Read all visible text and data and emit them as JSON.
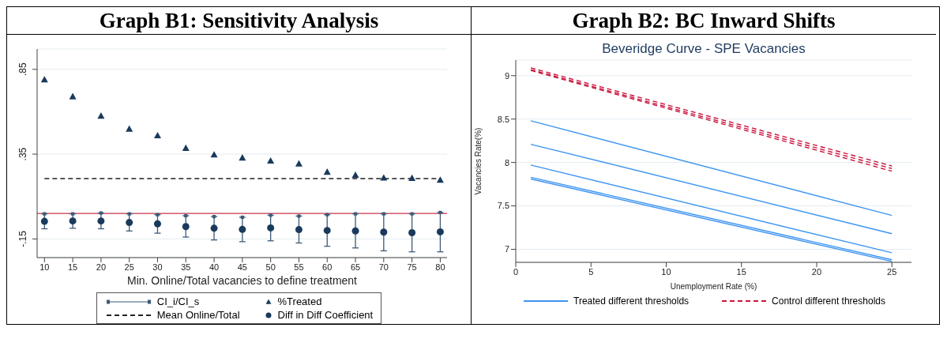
{
  "chart_data": [
    {
      "type": "scatter",
      "title": "Graph B1: Sensitivity Analysis",
      "xlabel": "Min. Online/Total vacancies to define treatment",
      "x": [
        10,
        15,
        20,
        25,
        30,
        35,
        40,
        45,
        50,
        55,
        60,
        65,
        70,
        75,
        80
      ],
      "xlim": [
        8.7,
        81.2
      ],
      "xticks": [
        10,
        15,
        20,
        25,
        30,
        35,
        40,
        45,
        50,
        55,
        60,
        65,
        70,
        75,
        80
      ],
      "ylim": [
        -0.26,
        0.97
      ],
      "yticks": [
        {
          "value": 0.85,
          "label": ".85"
        },
        {
          "value": 0.35,
          "label": ".35"
        },
        {
          "value": -0.15,
          "label": "-.15"
        }
      ],
      "grid": "y",
      "legend": "bottom",
      "ref_lines": [
        {
          "axis": "y",
          "value": 0,
          "color": "#c8324b"
        }
      ],
      "series": [
        {
          "name": "CI_i/CI_s",
          "color": "#3d5a78",
          "marker": "square",
          "values": [
            -0.002,
            -0.002,
            0.003,
            -0.002,
            -0.007,
            -0.013,
            -0.018,
            -0.022,
            -0.01,
            -0.015,
            -0.007,
            -0.002,
            -0.002,
            -0.002,
            0.006
          ],
          "errors": [
            [
              -0.09,
              -0.002
            ],
            [
              -0.087,
              -0.002
            ],
            [
              -0.09,
              0.003
            ],
            [
              -0.103,
              -0.002
            ],
            [
              -0.116,
              -0.007
            ],
            [
              -0.139,
              -0.013
            ],
            [
              -0.156,
              -0.018
            ],
            [
              -0.166,
              -0.022
            ],
            [
              -0.161,
              -0.01
            ],
            [
              -0.174,
              -0.015
            ],
            [
              -0.193,
              -0.007
            ],
            [
              -0.203,
              -0.002
            ],
            [
              -0.22,
              -0.002
            ],
            [
              -0.226,
              -0.002
            ],
            [
              -0.226,
              0.006
            ]
          ]
        },
        {
          "name": "%Treated",
          "color": "#1a3a5c",
          "marker": "triangle",
          "values": [
            0.79,
            0.69,
            0.576,
            0.499,
            0.46,
            0.386,
            0.347,
            0.329,
            0.311,
            0.294,
            0.245,
            0.227,
            0.211,
            0.209,
            0.198
          ]
        },
        {
          "name": "Mean Online/Total",
          "type": "line",
          "color": "#222222",
          "marker": "none",
          "line_style": "dashed",
          "values": [
            0.206,
            0.206,
            0.206,
            0.206,
            0.206,
            0.206,
            0.206,
            0.206,
            0.206,
            0.206,
            0.206,
            0.206,
            0.206,
            0.206,
            0.206
          ]
        },
        {
          "name": "Diff in Diff Coefficient",
          "color": "#1a3a5c",
          "marker": "circle",
          "values": [
            -0.046,
            -0.044,
            -0.044,
            -0.053,
            -0.061,
            -0.077,
            -0.087,
            -0.094,
            -0.085,
            -0.095,
            -0.1,
            -0.103,
            -0.11,
            -0.113,
            -0.108
          ]
        }
      ]
    },
    {
      "type": "line",
      "title": "Graph B2: BC Inward Shifts",
      "subtitle": "Beveridge Curve - SPE Vacancies",
      "xlabel": "Unemployment Rate (%)",
      "ylabel": "Vacancies Rate(%)",
      "x": [
        1,
        25
      ],
      "xlim": [
        0,
        26.3
      ],
      "xticks": [
        0,
        5,
        10,
        15,
        20,
        25
      ],
      "ylim": [
        6.85,
        9.18
      ],
      "yticks": [
        7,
        7.5,
        8,
        8.5,
        9
      ],
      "grid": "y",
      "legend": "bottom",
      "marker": "none",
      "series": [
        {
          "name": "Treated different thresholds",
          "color": "#3d94f0",
          "line_style": "solid",
          "values": [
            8.48,
            7.39
          ]
        },
        {
          "color": "#3d94f0",
          "line_style": "solid",
          "values": [
            8.21,
            7.18
          ]
        },
        {
          "color": "#3d94f0",
          "line_style": "solid",
          "values": [
            7.97,
            6.96
          ]
        },
        {
          "color": "#3d94f0",
          "line_style": "solid",
          "values": [
            7.83,
            6.88
          ]
        },
        {
          "color": "#3d94f0",
          "line_style": "solid",
          "values": [
            7.81,
            6.86
          ]
        },
        {
          "name": "Control different thresholds",
          "color": "#c8143c",
          "line_style": "dashed",
          "values": [
            9.09,
            7.96
          ]
        },
        {
          "color": "#c8143c",
          "line_style": "dashed",
          "values": [
            9.07,
            7.93
          ]
        },
        {
          "color": "#c8143c",
          "line_style": "dashed",
          "values": [
            9.06,
            7.9
          ]
        }
      ]
    }
  ]
}
